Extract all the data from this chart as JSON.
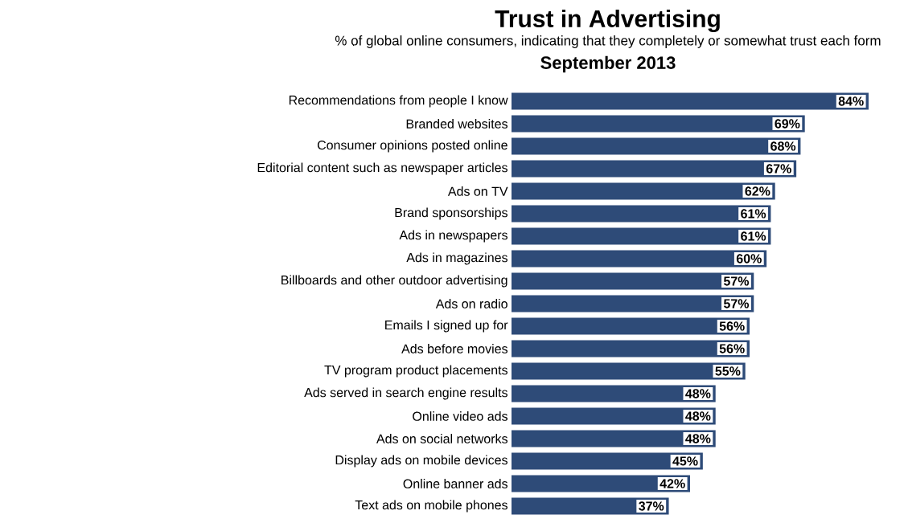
{
  "chart_data": {
    "type": "bar",
    "orientation": "horizontal",
    "title": "Trust in Advertising",
    "subtitle": "% of global online consumers, indicating that they completely or somewhat trust each form",
    "annotations": [
      "September 2013"
    ],
    "categories": [
      "Recommendations from people I know",
      "Branded websites",
      "Consumer opinions posted online",
      "Editorial content such as newspaper articles",
      "Ads on TV",
      "Brand sponsorships",
      "Ads in newspapers",
      "Ads in magazines",
      "Billboards and other outdoor advertising",
      "Ads on radio",
      "Emails I signed up for",
      "Ads before movies",
      "TV program product placements",
      "Ads served in search engine results",
      "Online video ads",
      "Ads on social networks",
      "Display ads on mobile devices",
      "Online banner ads",
      "Text ads on mobile phones"
    ],
    "values": [
      84,
      69,
      68,
      67,
      62,
      61,
      61,
      60,
      57,
      57,
      56,
      56,
      55,
      48,
      48,
      48,
      45,
      42,
      37
    ],
    "value_labels": [
      "84%",
      "69%",
      "68%",
      "67%",
      "62%",
      "61%",
      "61%",
      "60%",
      "57%",
      "57%",
      "56%",
      "56%",
      "55%",
      "48%",
      "48%",
      "48%",
      "45%",
      "42%",
      "37%"
    ],
    "color": "#2e4b78"
  }
}
